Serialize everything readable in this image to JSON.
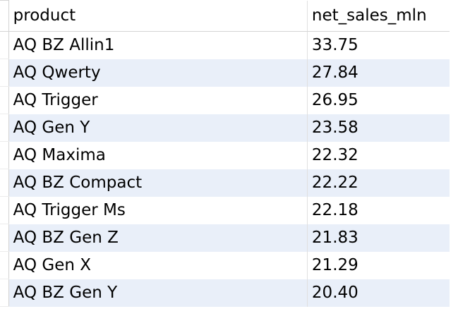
{
  "table": {
    "columns": [
      "product",
      "net_sales_mln"
    ],
    "rows": [
      {
        "product": "AQ BZ Allin1",
        "net_sales_mln": "33.75"
      },
      {
        "product": "AQ Qwerty",
        "net_sales_mln": "27.84"
      },
      {
        "product": "AQ Trigger",
        "net_sales_mln": "26.95"
      },
      {
        "product": "AQ Gen Y",
        "net_sales_mln": "23.58"
      },
      {
        "product": "AQ Maxima",
        "net_sales_mln": "22.32"
      },
      {
        "product": "AQ BZ Compact",
        "net_sales_mln": "22.22"
      },
      {
        "product": "AQ Trigger Ms",
        "net_sales_mln": "22.18"
      },
      {
        "product": "AQ BZ Gen Z",
        "net_sales_mln": "21.83"
      },
      {
        "product": "AQ Gen X",
        "net_sales_mln": "21.29"
      },
      {
        "product": "AQ BZ Gen Y",
        "net_sales_mln": "20.40"
      }
    ]
  },
  "colors": {
    "stripe": "#e9eff9",
    "background": "#ffffff",
    "text": "#000000"
  }
}
